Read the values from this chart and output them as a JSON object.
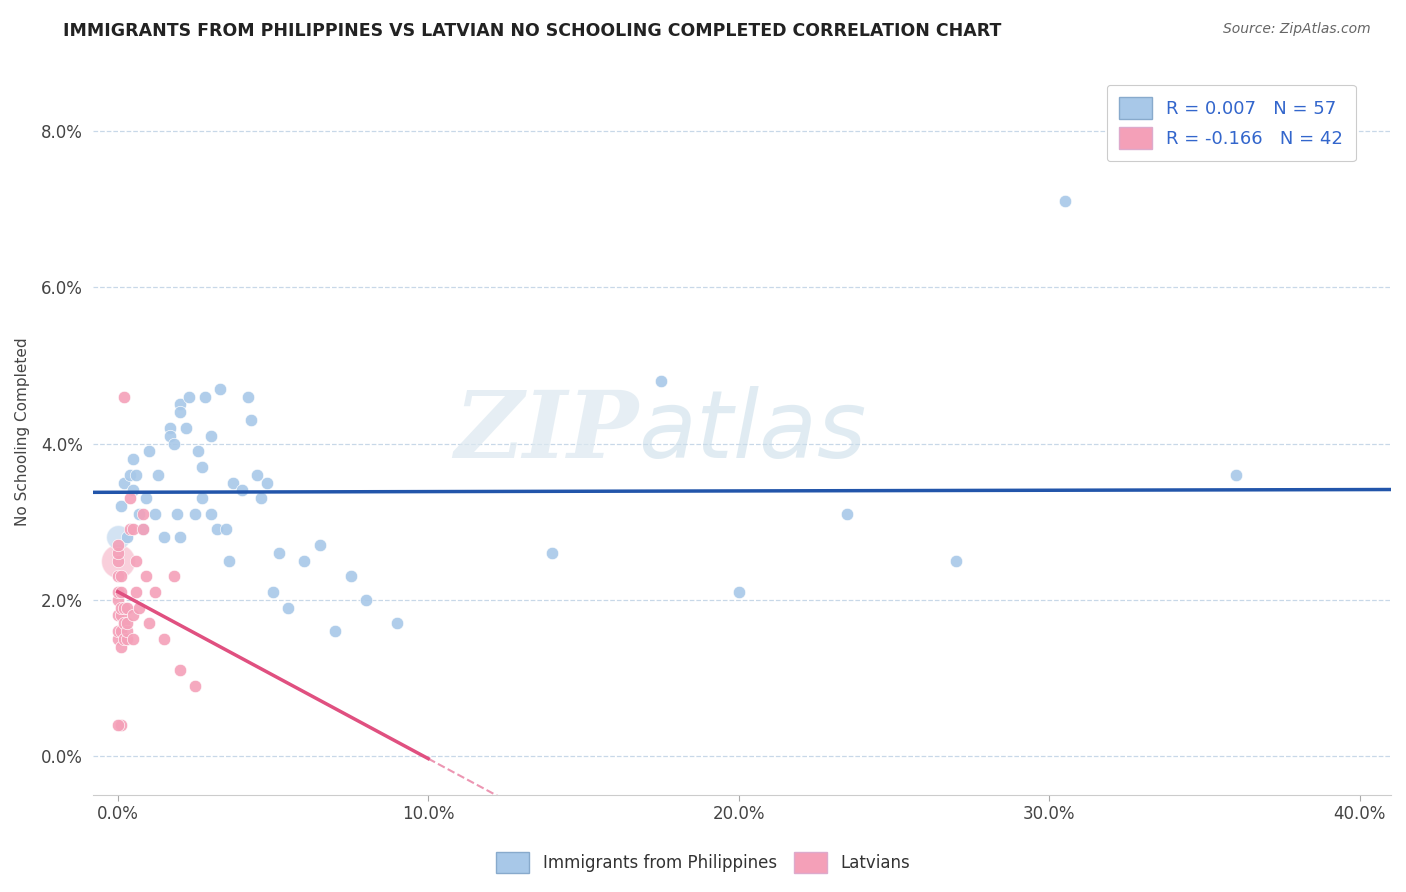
{
  "title": "IMMIGRANTS FROM PHILIPPINES VS LATVIAN NO SCHOOLING COMPLETED CORRELATION CHART",
  "source": "Source: ZipAtlas.com",
  "ylabel": "No Schooling Completed",
  "legend_bottom": [
    "Immigrants from Philippines",
    "Latvians"
  ],
  "r1": 0.007,
  "n1": 57,
  "r2": -0.166,
  "n2": 42,
  "blue_color": "#a8c8e8",
  "pink_color": "#f4a0b8",
  "trend_blue": "#2255aa",
  "trend_pink": "#e05080",
  "xlim": [
    -0.008,
    0.41
  ],
  "ylim": [
    -0.005,
    0.088
  ],
  "x_tick_vals": [
    0.0,
    0.1,
    0.2,
    0.3,
    0.4
  ],
  "y_tick_vals": [
    0.0,
    0.02,
    0.04,
    0.06,
    0.08
  ],
  "xlabel_ticks": [
    "0.0%",
    "10.0%",
    "20.0%",
    "30.0%",
    "40.0%"
  ],
  "ylabel_ticks": [
    "0.0%",
    "2.0%",
    "4.0%",
    "6.0%",
    "8.0%"
  ],
  "watermark_zip": "ZIP",
  "watermark_atlas": "atlas",
  "blue_scatter": [
    [
      0.001,
      0.032
    ],
    [
      0.002,
      0.035
    ],
    [
      0.003,
      0.028
    ],
    [
      0.004,
      0.036
    ],
    [
      0.005,
      0.034
    ],
    [
      0.005,
      0.038
    ],
    [
      0.006,
      0.036
    ],
    [
      0.007,
      0.031
    ],
    [
      0.008,
      0.029
    ],
    [
      0.009,
      0.033
    ],
    [
      0.01,
      0.039
    ],
    [
      0.012,
      0.031
    ],
    [
      0.013,
      0.036
    ],
    [
      0.015,
      0.028
    ],
    [
      0.017,
      0.042
    ],
    [
      0.017,
      0.041
    ],
    [
      0.018,
      0.04
    ],
    [
      0.019,
      0.031
    ],
    [
      0.02,
      0.028
    ],
    [
      0.02,
      0.045
    ],
    [
      0.02,
      0.044
    ],
    [
      0.022,
      0.042
    ],
    [
      0.023,
      0.046
    ],
    [
      0.025,
      0.031
    ],
    [
      0.026,
      0.039
    ],
    [
      0.027,
      0.033
    ],
    [
      0.027,
      0.037
    ],
    [
      0.028,
      0.046
    ],
    [
      0.03,
      0.041
    ],
    [
      0.03,
      0.031
    ],
    [
      0.032,
      0.029
    ],
    [
      0.033,
      0.047
    ],
    [
      0.035,
      0.029
    ],
    [
      0.036,
      0.025
    ],
    [
      0.037,
      0.035
    ],
    [
      0.04,
      0.034
    ],
    [
      0.042,
      0.046
    ],
    [
      0.043,
      0.043
    ],
    [
      0.045,
      0.036
    ],
    [
      0.046,
      0.033
    ],
    [
      0.048,
      0.035
    ],
    [
      0.05,
      0.021
    ],
    [
      0.052,
      0.026
    ],
    [
      0.055,
      0.019
    ],
    [
      0.06,
      0.025
    ],
    [
      0.065,
      0.027
    ],
    [
      0.07,
      0.016
    ],
    [
      0.075,
      0.023
    ],
    [
      0.08,
      0.02
    ],
    [
      0.09,
      0.017
    ],
    [
      0.14,
      0.026
    ],
    [
      0.175,
      0.048
    ],
    [
      0.2,
      0.021
    ],
    [
      0.235,
      0.031
    ],
    [
      0.27,
      0.025
    ],
    [
      0.305,
      0.071
    ],
    [
      0.36,
      0.036
    ]
  ],
  "pink_scatter": [
    [
      0.0,
      0.015
    ],
    [
      0.0,
      0.016
    ],
    [
      0.0,
      0.018
    ],
    [
      0.0,
      0.02
    ],
    [
      0.0,
      0.021
    ],
    [
      0.0,
      0.023
    ],
    [
      0.0,
      0.025
    ],
    [
      0.0,
      0.026
    ],
    [
      0.0,
      0.027
    ],
    [
      0.001,
      0.014
    ],
    [
      0.001,
      0.016
    ],
    [
      0.001,
      0.018
    ],
    [
      0.001,
      0.019
    ],
    [
      0.001,
      0.021
    ],
    [
      0.001,
      0.023
    ],
    [
      0.002,
      0.015
    ],
    [
      0.002,
      0.017
    ],
    [
      0.002,
      0.019
    ],
    [
      0.002,
      0.046
    ],
    [
      0.003,
      0.015
    ],
    [
      0.003,
      0.016
    ],
    [
      0.003,
      0.017
    ],
    [
      0.003,
      0.019
    ],
    [
      0.004,
      0.033
    ],
    [
      0.004,
      0.029
    ],
    [
      0.005,
      0.015
    ],
    [
      0.005,
      0.018
    ],
    [
      0.005,
      0.029
    ],
    [
      0.006,
      0.025
    ],
    [
      0.006,
      0.021
    ],
    [
      0.007,
      0.019
    ],
    [
      0.008,
      0.031
    ],
    [
      0.008,
      0.029
    ],
    [
      0.009,
      0.023
    ],
    [
      0.01,
      0.017
    ],
    [
      0.012,
      0.021
    ],
    [
      0.015,
      0.015
    ],
    [
      0.018,
      0.023
    ],
    [
      0.02,
      0.011
    ],
    [
      0.025,
      0.009
    ],
    [
      0.001,
      0.004
    ],
    [
      0.0,
      0.004
    ]
  ],
  "pink_large": [
    [
      0.0,
      0.025
    ]
  ],
  "blue_large": [
    [
      0.0,
      0.028
    ]
  ]
}
